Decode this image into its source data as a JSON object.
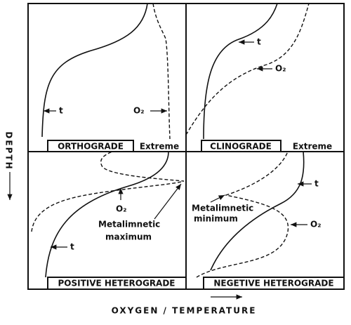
{
  "axes": {
    "y_label": "DEPTH",
    "x_label": "OXYGEN / TEMPERATURE"
  },
  "panels": [
    {
      "label": "ORTHOGRADE",
      "extreme": "Extreme",
      "t": "t",
      "o2": "O₂"
    },
    {
      "label": "CLINOGRADE",
      "extreme": "Extreme",
      "t": "t",
      "o2": "O₂"
    },
    {
      "label": "POSITIVE HETEROGRADE",
      "t": "t",
      "o2": "O₂",
      "note": [
        "Metalimnetic",
        "maximum"
      ]
    },
    {
      "label": "NEGETIVE HETEROGRADE",
      "t": "t",
      "o2": "O₂",
      "note": [
        "Metalimnetic",
        "minimum"
      ]
    }
  ]
}
